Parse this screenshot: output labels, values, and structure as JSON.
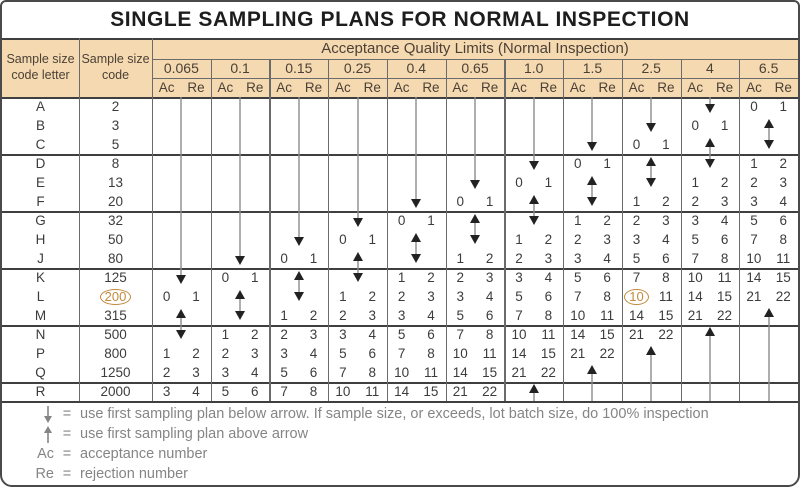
{
  "title": "SINGLE SAMPLING PLANS FOR NORMAL INSPECTION",
  "header": {
    "col1": "Sample size code letter",
    "col2": "Sample size code",
    "banner": "Acceptance Quality Limits (Normal Inspection)",
    "aql_levels": [
      "0.065",
      "0.1",
      "0.15",
      "0.25",
      "0.4",
      "0.65",
      "1.0",
      "1.5",
      "2.5",
      "4",
      "6.5"
    ],
    "ac": "Ac",
    "re": "Re"
  },
  "rows": [
    {
      "letter": "A",
      "size": "2"
    },
    {
      "letter": "B",
      "size": "3"
    },
    {
      "letter": "C",
      "size": "5"
    },
    {
      "letter": "D",
      "size": "8"
    },
    {
      "letter": "E",
      "size": "13"
    },
    {
      "letter": "F",
      "size": "20"
    },
    {
      "letter": "G",
      "size": "32"
    },
    {
      "letter": "H",
      "size": "50"
    },
    {
      "letter": "J",
      "size": "80"
    },
    {
      "letter": "K",
      "size": "125"
    },
    {
      "letter": "L",
      "size": "200",
      "circled": true
    },
    {
      "letter": "M",
      "size": "315"
    },
    {
      "letter": "N",
      "size": "500"
    },
    {
      "letter": "P",
      "size": "800"
    },
    {
      "letter": "Q",
      "size": "1250"
    },
    {
      "letter": "R",
      "size": "2000"
    }
  ],
  "group_breaks": [
    "C",
    "F",
    "J",
    "M",
    "Q"
  ],
  "columns": [
    {
      "aql": "0.065",
      "arrows": [
        {
          "type": "down",
          "from": "A",
          "to": "K"
        },
        {
          "type": "both",
          "from": "M",
          "to": "N"
        }
      ],
      "values": [
        {
          "row": "L",
          "ac": "0",
          "re": "1"
        },
        {
          "row": "P",
          "ac": "1",
          "re": "2"
        },
        {
          "row": "Q",
          "ac": "2",
          "re": "3"
        },
        {
          "row": "R",
          "ac": "3",
          "re": "4"
        }
      ]
    },
    {
      "aql": "0.1",
      "arrows": [
        {
          "type": "down",
          "from": "A",
          "to": "J"
        },
        {
          "type": "both",
          "from": "L",
          "to": "M"
        }
      ],
      "values": [
        {
          "row": "K",
          "ac": "0",
          "re": "1"
        },
        {
          "row": "N",
          "ac": "1",
          "re": "2"
        },
        {
          "row": "P",
          "ac": "2",
          "re": "3"
        },
        {
          "row": "Q",
          "ac": "3",
          "re": "4"
        },
        {
          "row": "R",
          "ac": "5",
          "re": "6"
        }
      ]
    },
    {
      "aql": "0.15",
      "arrows": [
        {
          "type": "down",
          "from": "A",
          "to": "H"
        },
        {
          "type": "both",
          "from": "K",
          "to": "L"
        }
      ],
      "values": [
        {
          "row": "J",
          "ac": "0",
          "re": "1"
        },
        {
          "row": "M",
          "ac": "1",
          "re": "2"
        },
        {
          "row": "N",
          "ac": "2",
          "re": "3"
        },
        {
          "row": "P",
          "ac": "3",
          "re": "4"
        },
        {
          "row": "Q",
          "ac": "5",
          "re": "6"
        },
        {
          "row": "R",
          "ac": "7",
          "re": "8"
        }
      ]
    },
    {
      "aql": "0.25",
      "arrows": [
        {
          "type": "down",
          "from": "A",
          "to": "G"
        },
        {
          "type": "both",
          "from": "J",
          "to": "K"
        }
      ],
      "values": [
        {
          "row": "H",
          "ac": "0",
          "re": "1"
        },
        {
          "row": "L",
          "ac": "1",
          "re": "2"
        },
        {
          "row": "M",
          "ac": "2",
          "re": "3"
        },
        {
          "row": "N",
          "ac": "3",
          "re": "4"
        },
        {
          "row": "P",
          "ac": "5",
          "re": "6"
        },
        {
          "row": "Q",
          "ac": "7",
          "re": "8"
        },
        {
          "row": "R",
          "ac": "10",
          "re": "11"
        }
      ]
    },
    {
      "aql": "0.4",
      "arrows": [
        {
          "type": "down",
          "from": "A",
          "to": "F"
        },
        {
          "type": "both",
          "from": "H",
          "to": "J"
        }
      ],
      "values": [
        {
          "row": "G",
          "ac": "0",
          "re": "1"
        },
        {
          "row": "K",
          "ac": "1",
          "re": "2"
        },
        {
          "row": "L",
          "ac": "2",
          "re": "3"
        },
        {
          "row": "M",
          "ac": "3",
          "re": "4"
        },
        {
          "row": "N",
          "ac": "5",
          "re": "6"
        },
        {
          "row": "P",
          "ac": "7",
          "re": "8"
        },
        {
          "row": "Q",
          "ac": "10",
          "re": "11"
        },
        {
          "row": "R",
          "ac": "14",
          "re": "15"
        }
      ]
    },
    {
      "aql": "0.65",
      "arrows": [
        {
          "type": "down",
          "from": "A",
          "to": "E"
        },
        {
          "type": "both",
          "from": "G",
          "to": "H"
        }
      ],
      "values": [
        {
          "row": "F",
          "ac": "0",
          "re": "1"
        },
        {
          "row": "J",
          "ac": "1",
          "re": "2"
        },
        {
          "row": "K",
          "ac": "2",
          "re": "3"
        },
        {
          "row": "L",
          "ac": "3",
          "re": "4"
        },
        {
          "row": "M",
          "ac": "5",
          "re": "6"
        },
        {
          "row": "N",
          "ac": "7",
          "re": "8"
        },
        {
          "row": "P",
          "ac": "10",
          "re": "11"
        },
        {
          "row": "Q",
          "ac": "14",
          "re": "15"
        },
        {
          "row": "R",
          "ac": "21",
          "re": "22"
        }
      ]
    },
    {
      "aql": "1.0",
      "arrows": [
        {
          "type": "down",
          "from": "A",
          "to": "D"
        },
        {
          "type": "both",
          "from": "F",
          "to": "G"
        },
        {
          "type": "up",
          "from": "R",
          "to": "R"
        }
      ],
      "values": [
        {
          "row": "E",
          "ac": "0",
          "re": "1"
        },
        {
          "row": "H",
          "ac": "1",
          "re": "2"
        },
        {
          "row": "J",
          "ac": "2",
          "re": "3"
        },
        {
          "row": "K",
          "ac": "3",
          "re": "4"
        },
        {
          "row": "L",
          "ac": "5",
          "re": "6"
        },
        {
          "row": "M",
          "ac": "7",
          "re": "8"
        },
        {
          "row": "N",
          "ac": "10",
          "re": "11"
        },
        {
          "row": "P",
          "ac": "14",
          "re": "15"
        },
        {
          "row": "Q",
          "ac": "21",
          "re": "22"
        }
      ]
    },
    {
      "aql": "1.5",
      "arrows": [
        {
          "type": "down",
          "from": "A",
          "to": "C"
        },
        {
          "type": "both",
          "from": "E",
          "to": "F"
        },
        {
          "type": "up",
          "from": "Q",
          "to": "R"
        }
      ],
      "values": [
        {
          "row": "D",
          "ac": "0",
          "re": "1"
        },
        {
          "row": "G",
          "ac": "1",
          "re": "2"
        },
        {
          "row": "H",
          "ac": "2",
          "re": "3"
        },
        {
          "row": "J",
          "ac": "3",
          "re": "4"
        },
        {
          "row": "K",
          "ac": "5",
          "re": "6"
        },
        {
          "row": "L",
          "ac": "7",
          "re": "8"
        },
        {
          "row": "M",
          "ac": "10",
          "re": "11"
        },
        {
          "row": "N",
          "ac": "14",
          "re": "15"
        },
        {
          "row": "P",
          "ac": "21",
          "re": "22"
        }
      ]
    },
    {
      "aql": "2.5",
      "arrows": [
        {
          "type": "down",
          "from": "A",
          "to": "B"
        },
        {
          "type": "both",
          "from": "D",
          "to": "E"
        },
        {
          "type": "up",
          "from": "P",
          "to": "R"
        }
      ],
      "values": [
        {
          "row": "C",
          "ac": "0",
          "re": "1"
        },
        {
          "row": "F",
          "ac": "1",
          "re": "2"
        },
        {
          "row": "G",
          "ac": "2",
          "re": "3"
        },
        {
          "row": "H",
          "ac": "3",
          "re": "4"
        },
        {
          "row": "J",
          "ac": "5",
          "re": "6"
        },
        {
          "row": "K",
          "ac": "7",
          "re": "8"
        },
        {
          "row": "L",
          "ac": "10",
          "re": "11",
          "ac_circled": true
        },
        {
          "row": "M",
          "ac": "14",
          "re": "15"
        },
        {
          "row": "N",
          "ac": "21",
          "re": "22"
        }
      ]
    },
    {
      "aql": "4",
      "arrows": [
        {
          "type": "down",
          "from": "A",
          "to": "A"
        },
        {
          "type": "both",
          "from": "C",
          "to": "D"
        },
        {
          "type": "up",
          "from": "N",
          "to": "R"
        }
      ],
      "values": [
        {
          "row": "B",
          "ac": "0",
          "re": "1"
        },
        {
          "row": "E",
          "ac": "1",
          "re": "2"
        },
        {
          "row": "F",
          "ac": "2",
          "re": "3"
        },
        {
          "row": "G",
          "ac": "3",
          "re": "4"
        },
        {
          "row": "H",
          "ac": "5",
          "re": "6"
        },
        {
          "row": "J",
          "ac": "7",
          "re": "8"
        },
        {
          "row": "K",
          "ac": "10",
          "re": "11"
        },
        {
          "row": "L",
          "ac": "14",
          "re": "15"
        },
        {
          "row": "M",
          "ac": "21",
          "re": "22"
        }
      ]
    },
    {
      "aql": "6.5",
      "arrows": [
        {
          "type": "both",
          "from": "B",
          "to": "C"
        },
        {
          "type": "up",
          "from": "M",
          "to": "R"
        }
      ],
      "values": [
        {
          "row": "A",
          "ac": "0",
          "re": "1"
        },
        {
          "row": "D",
          "ac": "1",
          "re": "2"
        },
        {
          "row": "E",
          "ac": "2",
          "re": "3"
        },
        {
          "row": "F",
          "ac": "3",
          "re": "4"
        },
        {
          "row": "G",
          "ac": "5",
          "re": "6"
        },
        {
          "row": "H",
          "ac": "7",
          "re": "8"
        },
        {
          "row": "J",
          "ac": "10",
          "re": "11"
        },
        {
          "row": "K",
          "ac": "14",
          "re": "15"
        },
        {
          "row": "L",
          "ac": "21",
          "re": "22"
        }
      ]
    }
  ],
  "legend": [
    {
      "symbol": "arrow-down",
      "eq": "=",
      "text": "use first sampling plan below arrow. If sample size, or exceeds, lot batch size, do 100% inspection"
    },
    {
      "symbol": "arrow-up",
      "eq": "=",
      "text": "use first sampling plan above arrow"
    },
    {
      "symbol": "Ac",
      "eq": "=",
      "text": "acceptance number"
    },
    {
      "symbol": "Re",
      "eq": "=",
      "text": "rejection number"
    }
  ],
  "colors": {
    "header_bg": "#f5dab1",
    "header_text": "#4c4036",
    "body_text": "#3c3c3c",
    "grid": "#6b6b6b",
    "heavy": "#3f3f3f",
    "arrow_line": "#8c8c8c",
    "arrow_head": "#222222",
    "accent": "#c28a3e",
    "footer_text": "#858585",
    "title_text": "#1d1d1d"
  }
}
